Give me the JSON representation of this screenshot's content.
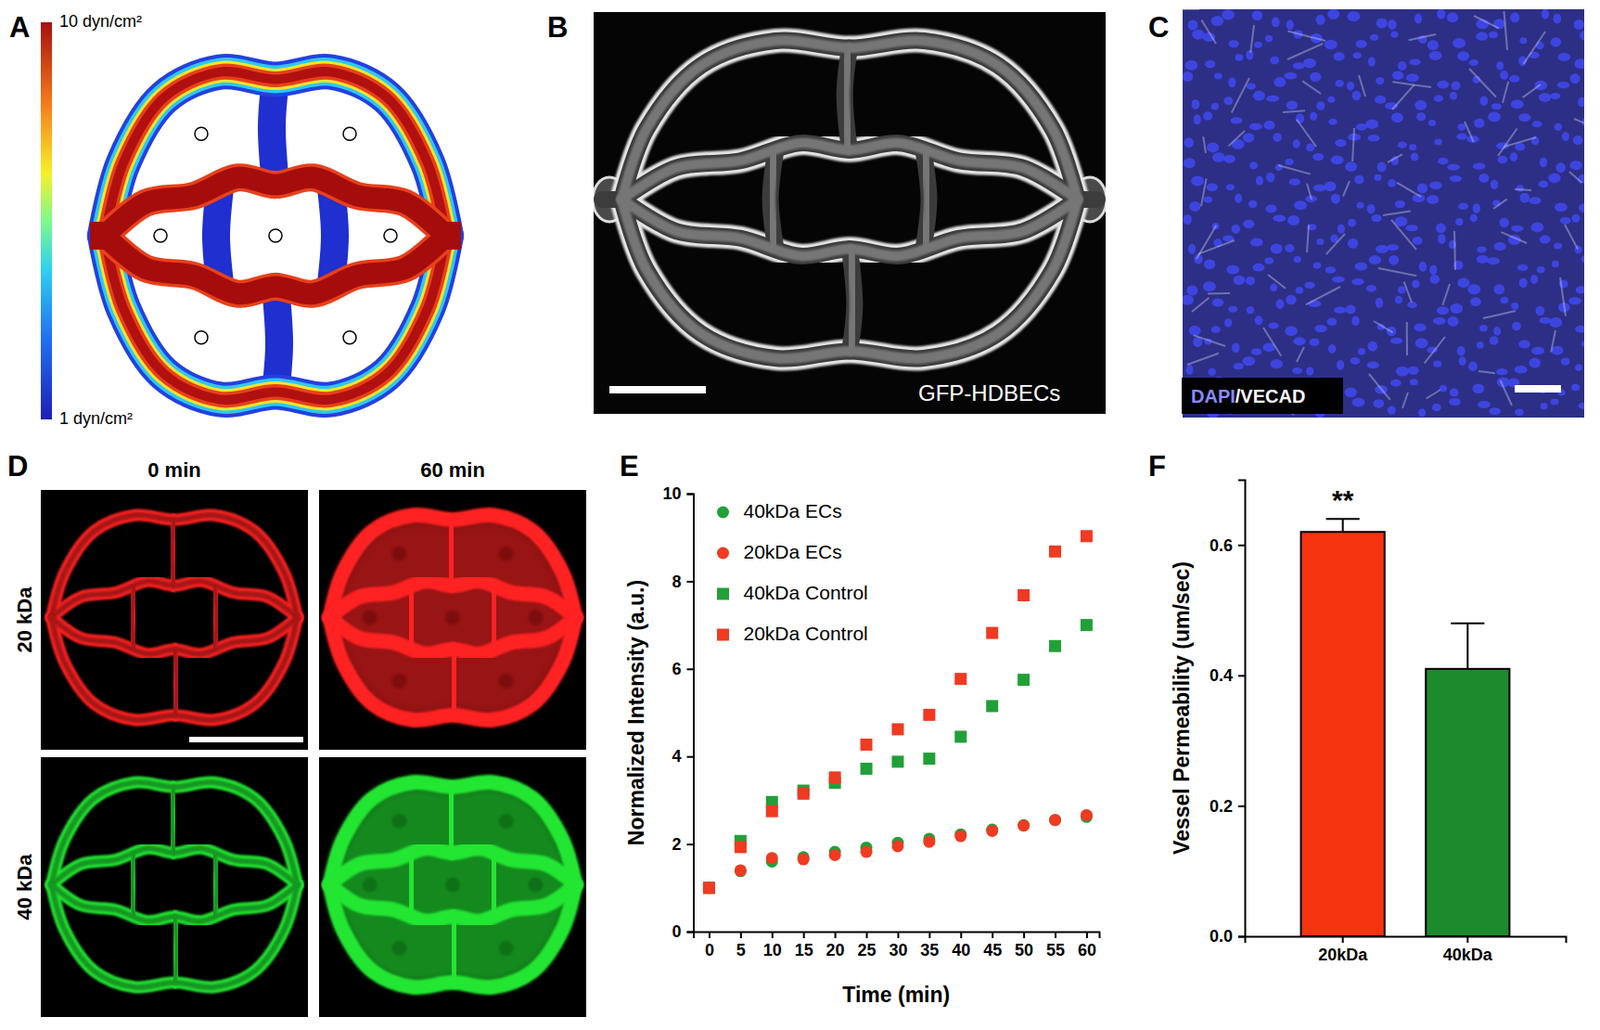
{
  "panels": {
    "letters": [
      "A",
      "B",
      "C",
      "D",
      "E",
      "F"
    ],
    "A": {
      "colorbar": {
        "range": [
          1,
          10
        ],
        "ticks": [
          {
            "value": 10,
            "label": "10 dyn/cm²"
          },
          {
            "value": 1,
            "label": "1 dyn/cm²"
          }
        ]
      }
    },
    "B": {
      "label": "GFP-HDBECs"
    },
    "C": {
      "label": [
        "DAPI",
        "/VECAD"
      ]
    },
    "D": {
      "columns": [
        "0 min",
        "60 min"
      ],
      "rows": [
        "20 kDa",
        "40 kDa"
      ]
    }
  },
  "chart_data": [
    {
      "type": "scatter",
      "x_label": "Time (min)",
      "y_label": "Normalized Intensity (a.u.)",
      "x": [
        0,
        5,
        10,
        15,
        20,
        25,
        30,
        35,
        40,
        45,
        50,
        55,
        60
      ],
      "xlim": [
        -2.5,
        62
      ],
      "xticks": [
        0,
        5,
        10,
        15,
        20,
        25,
        30,
        35,
        40,
        45,
        50,
        55,
        60
      ],
      "ylim": [
        0,
        10
      ],
      "yticks": [
        0,
        2,
        4,
        6,
        8,
        10
      ],
      "legend": "top-left",
      "series": [
        {
          "name": "40kDa ECs",
          "color": "#21a038",
          "marker": "circle",
          "values": [
            1.0,
            1.38,
            1.6,
            1.7,
            1.82,
            1.92,
            2.03,
            2.12,
            2.22,
            2.33,
            2.43,
            2.55,
            2.62
          ]
        },
        {
          "name": "20kDa ECs",
          "color": "#f03a22",
          "marker": "circle",
          "values": [
            1.0,
            1.4,
            1.68,
            1.65,
            1.75,
            1.82,
            1.95,
            2.05,
            2.18,
            2.3,
            2.42,
            2.55,
            2.66
          ]
        },
        {
          "name": "40kDa Control",
          "color": "#21a038",
          "marker": "square",
          "values": [
            1.0,
            2.07,
            2.96,
            3.22,
            3.4,
            3.72,
            3.88,
            3.95,
            4.45,
            5.15,
            5.75,
            6.52,
            7.0
          ]
        },
        {
          "name": "20kDa Control",
          "color": "#f03a22",
          "marker": "square",
          "values": [
            1.0,
            1.93,
            2.75,
            3.15,
            3.52,
            4.27,
            4.62,
            4.95,
            5.77,
            6.82,
            7.68,
            8.68,
            9.03
          ]
        }
      ]
    },
    {
      "type": "bar",
      "y_label": "Vessel Permeability (um/sec)",
      "categories": [
        "20kDa",
        "40kDa"
      ],
      "values": [
        0.62,
        0.41
      ],
      "errors": [
        0.02,
        0.07
      ],
      "colors": [
        "#f5330f",
        "#1d8a2e"
      ],
      "ylim": [
        0,
        0.7
      ],
      "yticks": [
        {
          "value": 0,
          "label": "0.0"
        },
        0.2,
        0.4,
        0.6
      ],
      "annotations": [
        {
          "text": "**",
          "category": "20kDa"
        }
      ]
    }
  ]
}
